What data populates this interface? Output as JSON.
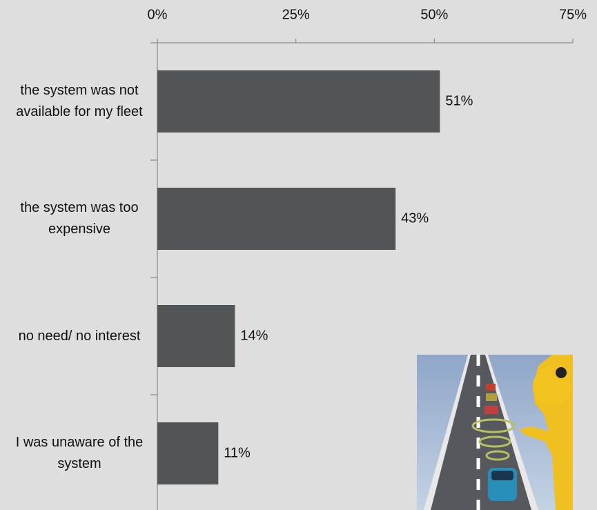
{
  "chart_data": {
    "type": "hbar",
    "categories": [
      "the system was not available for my fleet",
      "the system was too expensive",
      "no need/ no interest",
      "I was unaware of the system"
    ],
    "values": [
      51,
      43,
      14,
      11
    ],
    "value_labels": [
      "51%",
      "43%",
      "14%",
      "11%"
    ],
    "color": "#515558",
    "xlim": [
      0,
      75
    ],
    "xticks": [
      {
        "value": 0,
        "label": "0%"
      },
      {
        "value": 25,
        "label": "25%"
      },
      {
        "value": 50,
        "label": "50%"
      },
      {
        "value": 75,
        "label": "75%"
      }
    ]
  }
}
